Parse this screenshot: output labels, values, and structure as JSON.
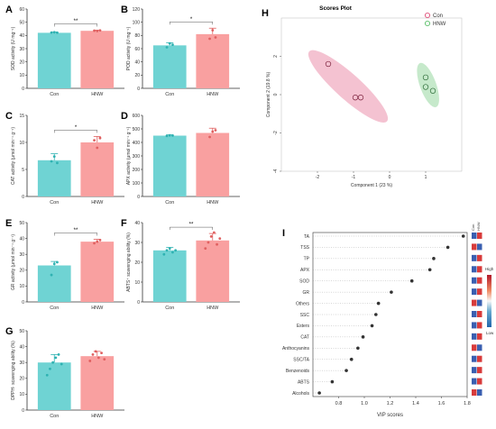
{
  "colors": {
    "con": "#6fd3d3",
    "hnw": "#f9a0a0",
    "con_stroke": "#2fb2b2",
    "hnw_stroke": "#e06060",
    "pca_con": "#e0507a",
    "pca_hnw": "#5bbf6a",
    "axis": "#333333"
  },
  "chart_data": [
    {
      "panel": "A",
      "type": "bar",
      "categories": [
        "Con",
        "HNW"
      ],
      "values": [
        42,
        43.5
      ],
      "errors": [
        0.6,
        0.5
      ],
      "points": [
        [
          42.2,
          42.4,
          42.1
        ],
        [
          43.6,
          43.4,
          43.8
        ]
      ],
      "ylabel": "SOD activity (U mg⁻¹)",
      "ylim": [
        0,
        60
      ],
      "yticks": [
        0,
        10,
        20,
        30,
        40,
        50,
        60
      ],
      "sig": "**"
    },
    {
      "panel": "B",
      "type": "bar",
      "categories": [
        "Con",
        "HNW"
      ],
      "values": [
        65,
        82
      ],
      "errors": [
        4,
        9
      ],
      "points": [
        [
          62,
          68,
          66
        ],
        [
          75,
          88,
          77
        ]
      ],
      "ylabel": "POD activity (U mg⁻¹)",
      "ylim": [
        0,
        120
      ],
      "yticks": [
        0,
        20,
        40,
        60,
        80,
        100,
        120
      ],
      "sig": "*"
    },
    {
      "panel": "C",
      "type": "bar",
      "categories": [
        "Con",
        "HNW"
      ],
      "values": [
        6.7,
        10
      ],
      "errors": [
        1.2,
        1.1
      ],
      "points": [
        [
          6.5,
          7.4,
          6.2
        ],
        [
          10.4,
          9.0,
          10.8
        ]
      ],
      "ylabel": "CAT activity (μmol min⁻¹ g⁻¹)",
      "ylim": [
        0,
        15
      ],
      "yticks": [
        0,
        5,
        10,
        15
      ],
      "sig": "*"
    },
    {
      "panel": "D",
      "type": "bar",
      "categories": [
        "Con",
        "HNW"
      ],
      "values": [
        450,
        470
      ],
      "errors": [
        6,
        35
      ],
      "points": [
        [
          448,
          452,
          451
        ],
        [
          440,
          480,
          490
        ]
      ],
      "ylabel": "APX activity (μmol min⁻¹ g⁻¹)",
      "ylim": [
        0,
        600
      ],
      "yticks": [
        0,
        100,
        200,
        300,
        400,
        500,
        600
      ],
      "sig": ""
    },
    {
      "panel": "E",
      "type": "bar",
      "categories": [
        "Con",
        "HNW"
      ],
      "values": [
        23,
        38
      ],
      "errors": [
        2.5,
        1.5
      ],
      "points": [
        [
          17,
          24,
          25
        ],
        [
          37,
          38,
          39
        ]
      ],
      "ylabel": "GR activity (μmol min⁻¹ g⁻¹)",
      "ylim": [
        0,
        50
      ],
      "yticks": [
        0,
        10,
        20,
        30,
        40,
        50
      ],
      "sig": "**"
    },
    {
      "panel": "F",
      "type": "bar",
      "categories": [
        "Con",
        "HNW"
      ],
      "values": [
        26,
        31
      ],
      "errors": [
        1.5,
        3.5
      ],
      "points": [
        [
          24,
          26,
          27,
          25,
          26
        ],
        [
          27,
          30,
          33,
          35,
          29,
          32
        ]
      ],
      "ylabel": "ABTS⁺ scavenging ability (%)",
      "ylim": [
        0,
        40
      ],
      "yticks": [
        0,
        10,
        20,
        30,
        40
      ],
      "sig": "**"
    },
    {
      "panel": "G",
      "type": "bar",
      "categories": [
        "Con",
        "HNW"
      ],
      "values": [
        30,
        34
      ],
      "errors": [
        5,
        3
      ],
      "points": [
        [
          22,
          26,
          30,
          33,
          35,
          29
        ],
        [
          31,
          35,
          37,
          33,
          36,
          32
        ]
      ],
      "ylabel": "DPPH· scavenging ability (%)",
      "ylim": [
        0,
        50
      ],
      "yticks": [
        0,
        10,
        20,
        30,
        40,
        50
      ],
      "sig": ""
    },
    {
      "panel": "H",
      "type": "scatter",
      "title": "Scores Plot",
      "xlabel": "Component 1 (23 %)",
      "ylabel": "Component 2 (19.8 %)",
      "xlim": [
        -3,
        2
      ],
      "ylim": [
        -4,
        4
      ],
      "xticks": [
        -2,
        -1,
        0,
        1
      ],
      "yticks": [
        -4,
        -2,
        0,
        2
      ],
      "series": [
        {
          "name": "Con",
          "points": [
            [
              -1.7,
              1.6
            ],
            [
              -0.95,
              -0.15
            ],
            [
              -0.8,
              -0.15
            ]
          ]
        },
        {
          "name": "HNW",
          "points": [
            [
              1.0,
              0.9
            ],
            [
              1.0,
              0.4
            ],
            [
              1.2,
              0.2
            ]
          ]
        }
      ]
    },
    {
      "panel": "I",
      "type": "dot",
      "xlabel": "VIP scores",
      "xlim": [
        0.6,
        1.8
      ],
      "xticks": [
        0.8,
        1.0,
        1.2,
        1.4,
        1.6,
        1.8
      ],
      "categories": [
        "TA",
        "TSS",
        "TP",
        "APX",
        "SOD",
        "GR",
        "Others",
        "SSC",
        "Esters",
        "CAT",
        "Anthocyanins",
        "SSC/TA",
        "Benzenoids",
        "ABTS",
        "Alcohols"
      ],
      "values": [
        1.77,
        1.65,
        1.54,
        1.51,
        1.37,
        1.21,
        1.11,
        1.09,
        1.06,
        0.99,
        0.95,
        0.9,
        0.86,
        0.75,
        0.65
      ],
      "heatmap_columns": [
        "Con",
        "HNW"
      ],
      "heatmap_con": [
        0,
        1,
        0,
        0,
        0,
        0,
        1,
        0,
        0,
        0,
        1,
        0,
        0,
        0,
        1
      ],
      "legend_high": "High",
      "legend_low": "Low"
    }
  ]
}
